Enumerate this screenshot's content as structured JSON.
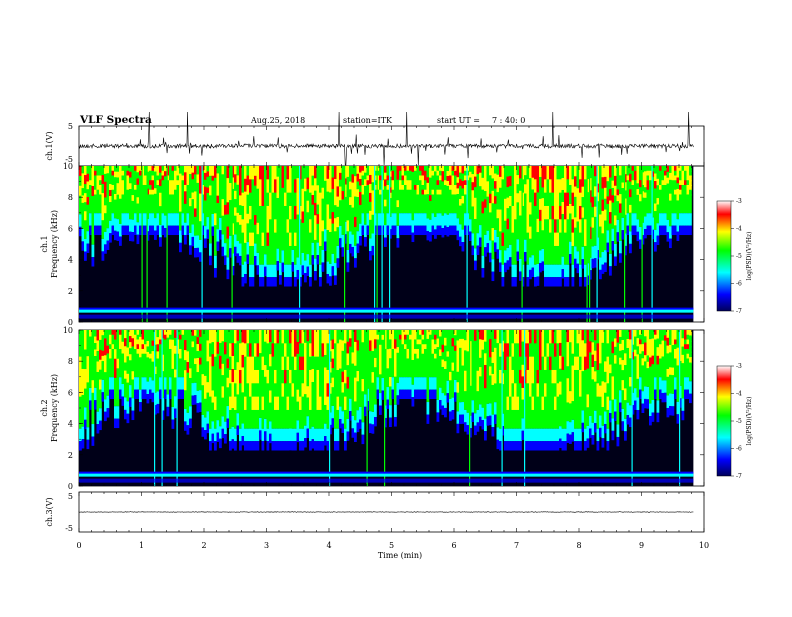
{
  "header": {
    "title": "VLF Spectra",
    "date": "Aug.25, 2018",
    "station": "station=ITK",
    "start_label": "start UT =",
    "start_time": "7 : 40: 0"
  },
  "chart_data": [
    {
      "type": "line",
      "panel": "ch1-waveform",
      "ylabel": "ch.1(V)",
      "ylim": [
        -5,
        5
      ],
      "y_ticks": [
        "5",
        "-5"
      ],
      "baseline": 0,
      "grid": false
    },
    {
      "type": "heatmap",
      "panel": "ch1-spectrogram",
      "ylabel_line1": "ch.1",
      "ylabel_line2": "Frequency (kHz)",
      "ylim": [
        0,
        10
      ],
      "y_ticks": [
        "0",
        "2",
        "4",
        "6",
        "8",
        "10"
      ],
      "colorbar": {
        "label": "log(PSD)(V²/Hz)",
        "range": [
          -7,
          -3
        ],
        "ticks": [
          "-3",
          "-4",
          "-5",
          "-6",
          "-7"
        ],
        "colors": [
          "#000080",
          "#0000ff",
          "#00ffff",
          "#00ff00",
          "#ffff00",
          "#ff0000",
          "#ffffff"
        ]
      }
    },
    {
      "type": "heatmap",
      "panel": "ch2-spectrogram",
      "ylabel_line1": "ch.2",
      "ylabel_line2": "Frequency (kHz)",
      "ylim": [
        0,
        10
      ],
      "y_ticks": [
        "0",
        "2",
        "4",
        "6",
        "8",
        "10"
      ],
      "colorbar": {
        "label": "log(PSD)(V²/Hz)",
        "range": [
          -7,
          -3
        ],
        "ticks": [
          "-3",
          "-4",
          "-5",
          "-6",
          "-7"
        ],
        "colors": [
          "#000080",
          "#0000ff",
          "#00ffff",
          "#00ff00",
          "#ffff00",
          "#ff0000",
          "#ffffff"
        ]
      }
    },
    {
      "type": "line",
      "panel": "ch3-waveform",
      "ylabel": "ch.3(V)",
      "ylim": [
        -5,
        5
      ],
      "y_ticks": [
        "5",
        "-5"
      ],
      "baseline": 0,
      "grid": false
    }
  ],
  "x_axis": {
    "label": "Time (min)",
    "range": [
      0,
      10
    ],
    "ticks": [
      "0",
      "1",
      "2",
      "3",
      "4",
      "5",
      "6",
      "7",
      "8",
      "9",
      "10"
    ],
    "data_end": 9.83
  }
}
